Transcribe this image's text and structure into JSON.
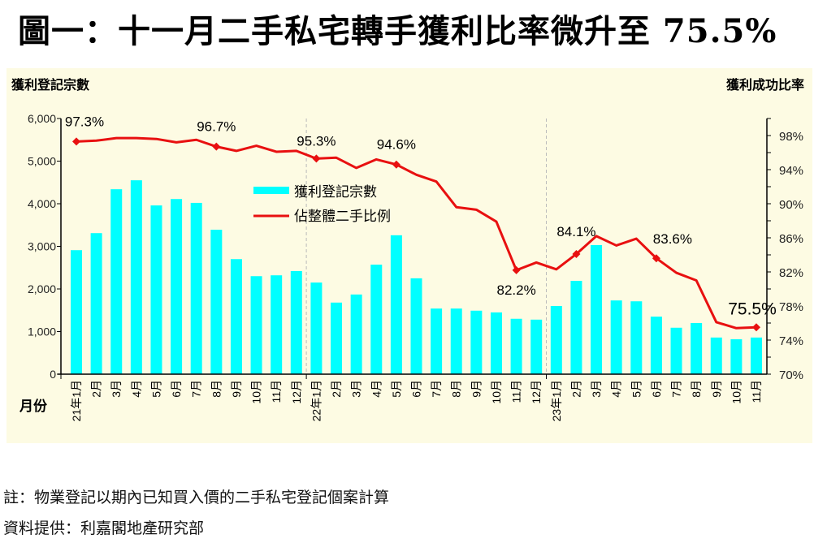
{
  "title": "圖一：十一月二手私宅轉手獲利比率微升至 75.5%",
  "footnote": "註：物業登記以期內已知買入價的二手私宅登記個案計算",
  "source": "資料提供：利嘉閣地產研究部",
  "colors": {
    "bar": "#00ffff",
    "line": "#e81010",
    "panel": "#fdfbe3"
  },
  "chart_data": {
    "type": "bar+line",
    "left_axis_title": "獲利登記宗數",
    "right_axis_title": "獲利成功比率",
    "xlabel": "月份",
    "left_ylim": [
      0,
      6000
    ],
    "left_ticks": [
      "0",
      "1,000",
      "2,000",
      "3,000",
      "4,000",
      "5,000",
      "6,000"
    ],
    "right_ylim": [
      70,
      100
    ],
    "right_ticks": [
      "70%",
      "74%",
      "78%",
      "82%",
      "86%",
      "90%",
      "94%",
      "98%"
    ],
    "categories": [
      "21年1月",
      "2月",
      "3月",
      "4月",
      "5月",
      "6月",
      "7月",
      "8月",
      "9月",
      "10月",
      "11月",
      "12月",
      "22年1月",
      "2月",
      "3月",
      "4月",
      "5月",
      "6月",
      "7月",
      "8月",
      "9月",
      "10月",
      "11月",
      "12月",
      "23年1月",
      "2月",
      "3月",
      "4月",
      "5月",
      "6月",
      "7月",
      "8月",
      "9月",
      "10月",
      "11月"
    ],
    "legend": [
      "獲利登記宗數",
      "佔整體二手比例"
    ],
    "legend_position": "center-left",
    "series": [
      {
        "name": "獲利登記宗數",
        "type": "bar",
        "axis": "left",
        "values": [
          2910,
          3310,
          4340,
          4550,
          3960,
          4110,
          4020,
          3390,
          2700,
          2300,
          2320,
          2420,
          2150,
          1680,
          1870,
          2570,
          3260,
          2250,
          1540,
          1540,
          1490,
          1450,
          1300,
          1280,
          1600,
          2190,
          3030,
          1730,
          1710,
          1350,
          1090,
          1200,
          860,
          820,
          860
        ]
      },
      {
        "name": "佔整體二手比例",
        "type": "line",
        "axis": "right",
        "values": [
          97.3,
          97.4,
          97.7,
          97.7,
          97.6,
          97.2,
          97.5,
          96.7,
          96.2,
          96.8,
          96.1,
          96.2,
          95.3,
          95.4,
          94.2,
          95.2,
          94.6,
          93.4,
          92.6,
          89.6,
          89.3,
          87.9,
          82.2,
          83.1,
          82.3,
          84.1,
          86.2,
          85.1,
          85.9,
          83.6,
          81.9,
          81.0,
          76.1,
          75.4,
          75.5
        ]
      }
    ],
    "annotations": [
      {
        "index": 0,
        "text": "97.3%"
      },
      {
        "index": 7,
        "text": "96.7%"
      },
      {
        "index": 12,
        "text": "95.3%"
      },
      {
        "index": 16,
        "text": "94.6%"
      },
      {
        "index": 22,
        "text": "82.2%"
      },
      {
        "index": 25,
        "text": "84.1%"
      },
      {
        "index": 29,
        "text": "83.6%"
      },
      {
        "index": 34,
        "text": "75.5%"
      }
    ]
  }
}
